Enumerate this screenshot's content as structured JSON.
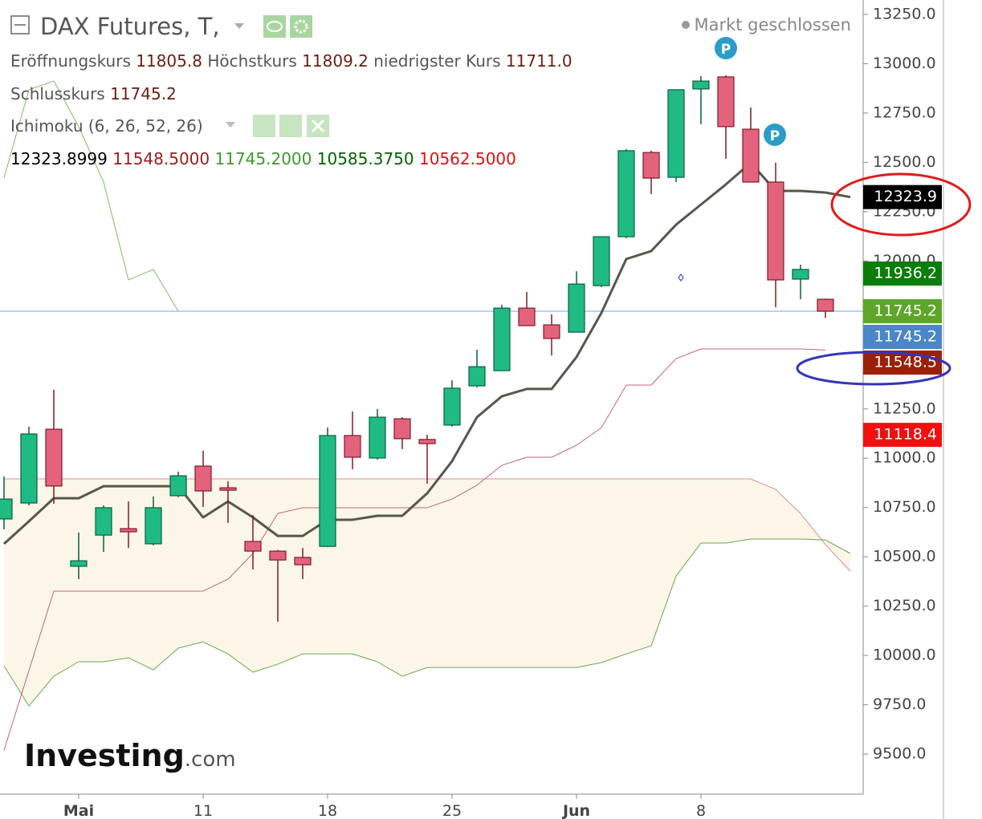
{
  "chart_data": {
    "type": "candlestick",
    "title": "DAX Futures, T,",
    "status": "Markt geschlossen",
    "ohlc_legend": [
      {
        "label": "Eröffnungskurs",
        "value": "11805.8"
      },
      {
        "label": "Höchstkurs",
        "value": "11809.2"
      },
      {
        "label": "niedrigster Kurs",
        "value": "11711.0"
      },
      {
        "label": "Schlusskurs",
        "value": "11745.2"
      }
    ],
    "indicator": "Ichimoku (6, 26, 52, 26)",
    "indicator_values": [
      {
        "value": "12323.8999",
        "color": "#000000"
      },
      {
        "value": "11548.5000",
        "color": "#9b1c1c"
      },
      {
        "value": "11745.2000",
        "color": "#3a9a2a"
      },
      {
        "value": "10585.3750",
        "color": "#006400"
      },
      {
        "value": "10562.5000",
        "color": "#e01010"
      }
    ],
    "categories": [
      null,
      null,
      null,
      "Mai",
      null,
      null,
      null,
      null,
      "11",
      null,
      null,
      null,
      null,
      "18",
      null,
      null,
      null,
      null,
      "25",
      null,
      null,
      null,
      null,
      "Jun",
      null,
      null,
      null,
      null,
      "8",
      null,
      null,
      null,
      null,
      null,
      null
    ],
    "open": [
      10692,
      10773,
      11147,
      10452,
      10610,
      10643,
      10566,
      10810,
      10960,
      10850,
      10578,
      10529,
      10497,
      10553,
      11115,
      11001,
      11200,
      11095,
      11168,
      11367,
      11444,
      11761,
      11676,
      11639,
      11875,
      12123,
      12550,
      12424,
      12872,
      12933,
      12668,
      12400,
      11908,
      11805.8,
      null
    ],
    "high": [
      10907,
      11160,
      11347,
      10623,
      10761,
      10781,
      10806,
      10932,
      11038,
      10883,
      10712,
      10535,
      10545,
      11156,
      11237,
      11249,
      11208,
      11119,
      11395,
      11550,
      11778,
      11843,
      11729,
      11948,
      12123,
      12567,
      12559,
      12868,
      12937,
      12941,
      12778,
      12498,
      11981,
      11809.2,
      null
    ],
    "low": [
      10639,
      10761,
      10769,
      10387,
      10525,
      10545,
      10558,
      10802,
      10753,
      10672,
      10436,
      10171,
      10387,
      10550,
      10944,
      10993,
      11046,
      10871,
      11160,
      11359,
      11444,
      11672,
      11521,
      11639,
      11867,
      12115,
      12339,
      12400,
      12693,
      12518,
      12400,
      11765,
      11806,
      11711,
      null
    ],
    "close": [
      10793,
      11123,
      10859,
      10480,
      10749,
      10627,
      10749,
      10911,
      10834,
      10838,
      10529,
      10484,
      10460,
      11115,
      11005,
      11208,
      11099,
      11074,
      11355,
      11464,
      11761,
      11672,
      11607,
      11883,
      12123,
      12559,
      12420,
      12868,
      12912,
      12681,
      12400,
      11904,
      11957,
      11745.2,
      null
    ],
    "up_color": "#1fbb83",
    "up_border": "#0b5e3f",
    "down_color": "#e3637c",
    "down_border": "#7d1a2c",
    "series": [
      {
        "color": "#d98c96",
        "width": 1,
        "cloud_fill": "#fbf6e8",
        "values": [
          10895,
          10895,
          10895,
          10895,
          10895,
          10895,
          10895,
          10895,
          10895,
          10895,
          10895,
          10895,
          10895,
          10895,
          10895,
          10895,
          10895,
          10895,
          10895,
          10895,
          10895,
          10895,
          10895,
          10895,
          10895,
          10895,
          10895,
          10895,
          10895,
          10895,
          10895,
          10842,
          10720,
          10562.5,
          10427
        ]
      },
      {
        "color": "#6aa84f",
        "width": 1,
        "values": [
          9947,
          9744,
          9895,
          9968,
          9968,
          9988,
          9927,
          10037,
          10069,
          10008,
          9915,
          9956,
          10008,
          10008,
          10008,
          9968,
          9895,
          9939,
          9939,
          9939,
          9939,
          9939,
          9939,
          9939,
          9964,
          10008,
          10049,
          10403,
          10570,
          10570,
          10590,
          10590,
          10590,
          10585.375,
          10517
        ]
      },
      {
        "color": "#c0667c",
        "width": 1,
        "values": [
          9520,
          9923,
          10326,
          10326,
          10326,
          10326,
          10326,
          10326,
          10326,
          10387,
          10517,
          10720,
          10749,
          10749,
          10749,
          10749,
          10749,
          10749,
          10793,
          10863,
          10964,
          11005,
          11005,
          11066,
          11155,
          11371,
          11371,
          11505,
          11554,
          11554,
          11554,
          11554,
          11554,
          11548.5,
          null
        ]
      },
      {
        "color": "#7cbf5c",
        "width": 1,
        "values": [
          12420,
          12868,
          12912,
          12681,
          12400,
          11904,
          11957,
          11745.2,
          null,
          null,
          null,
          null,
          null,
          null,
          null,
          null,
          null,
          null,
          null,
          null,
          null,
          null,
          null,
          null,
          null,
          null,
          null,
          null,
          null,
          null,
          null,
          null,
          null,
          null,
          null
        ]
      },
      {
        "color": "#55584a",
        "width": 3,
        "values": [
          10566,
          10680,
          10797,
          10797,
          10858,
          10858,
          10858,
          10858,
          10700,
          10781,
          10700,
          10606,
          10606,
          10688,
          10688,
          10708,
          10708,
          10822,
          10985,
          11208,
          11314,
          11351,
          11351,
          11513,
          11737,
          12010,
          12050,
          12184,
          12286,
          12388,
          12498,
          12355,
          12355,
          12347,
          12323.9
        ]
      }
    ],
    "price_line_color": "#8fb8ea",
    "price_tags": [
      {
        "value": 12323.9,
        "color": "#000000"
      },
      {
        "value": 11936.2,
        "color": "#0a7d0a"
      },
      {
        "value": 11745.2,
        "color": "#5ea52a"
      },
      {
        "value": 11745.2,
        "color": "#4a86c8"
      },
      {
        "value": 11548.5,
        "color": "#9b2008"
      },
      {
        "value": 11118.4,
        "color": "#f01010"
      }
    ],
    "ylim": [
      9297,
      13323
    ],
    "yticks": [
      {
        "value": 9500,
        "label": "9500.0"
      },
      {
        "value": 9750,
        "label": "9750.0"
      },
      {
        "value": 10000,
        "label": "10000.0"
      },
      {
        "value": 10250,
        "label": "10250.0"
      },
      {
        "value": 10500,
        "label": "10500.0"
      },
      {
        "value": 10750,
        "label": "10750.0"
      },
      {
        "value": 11000,
        "label": "11000.0"
      },
      {
        "value": 11250,
        "label": "11250.0"
      },
      {
        "value": 11500,
        "label": "11500.0"
      },
      {
        "value": 11750,
        "label": "11750.0"
      },
      {
        "value": 12000,
        "label": "12000.0"
      },
      {
        "value": 12250,
        "label": "12250.0"
      },
      {
        "value": 12500,
        "label": "12500.0"
      },
      {
        "value": 12750,
        "label": "12750.0"
      },
      {
        "value": 13000,
        "label": "13000.0"
      },
      {
        "value": 13250,
        "label": "13250.0"
      }
    ],
    "pivot_labels": [
      "P",
      "P"
    ],
    "watermark": [
      "Investing",
      ".com"
    ]
  }
}
